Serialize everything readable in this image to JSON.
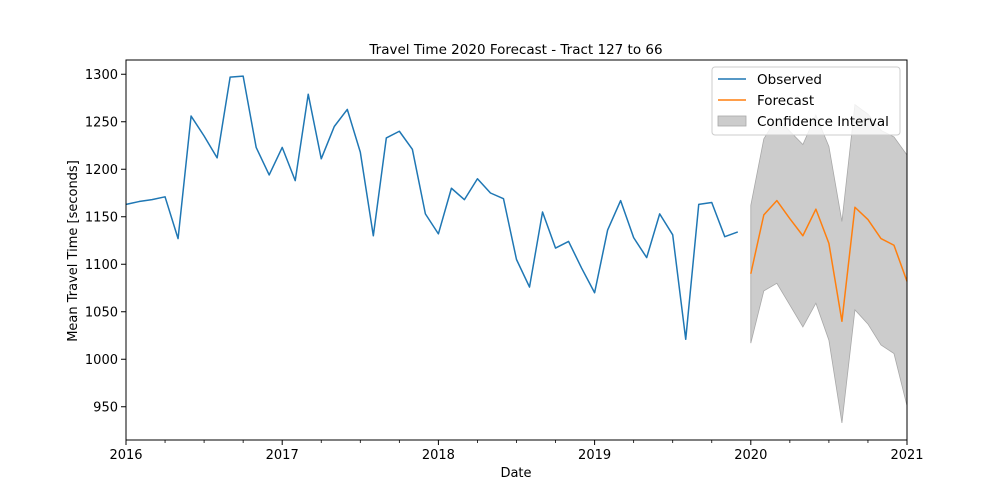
{
  "chart_data": {
    "type": "line",
    "title": "Travel Time 2020 Forecast - Tract 127 to 66",
    "xlabel": "Date",
    "ylabel": "Mean Travel Time [seconds]",
    "xlim": [
      "2016-01",
      "2021-01"
    ],
    "ylim": [
      915,
      1315
    ],
    "x_ticks": [
      "2016",
      "2017",
      "2018",
      "2019",
      "2020",
      "2021"
    ],
    "y_ticks": [
      950,
      1000,
      1050,
      1100,
      1150,
      1200,
      1250,
      1300
    ],
    "grid": false,
    "legend_position": "top-right",
    "legend": {
      "observed": "Observed",
      "forecast": "Forecast",
      "ci": "Confidence Interval"
    },
    "colors": {
      "observed": "#1f77b4",
      "forecast": "#ff7f0e",
      "ci_fill": "#cccccc",
      "ci_edge": "#a8a8a8"
    },
    "series": [
      {
        "name": "Observed",
        "x": [
          "2016-01",
          "2016-02",
          "2016-03",
          "2016-04",
          "2016-05",
          "2016-06",
          "2016-07",
          "2016-08",
          "2016-09",
          "2016-10",
          "2016-11",
          "2016-12",
          "2017-01",
          "2017-02",
          "2017-03",
          "2017-04",
          "2017-05",
          "2017-06",
          "2017-07",
          "2017-08",
          "2017-09",
          "2017-10",
          "2017-11",
          "2017-12",
          "2018-01",
          "2018-02",
          "2018-03",
          "2018-04",
          "2018-05",
          "2018-06",
          "2018-07",
          "2018-08",
          "2018-09",
          "2018-10",
          "2018-11",
          "2018-12",
          "2019-01",
          "2019-02",
          "2019-03",
          "2019-04",
          "2019-05",
          "2019-06",
          "2019-07",
          "2019-08",
          "2019-09",
          "2019-10",
          "2019-11",
          "2019-12"
        ],
        "values": [
          1163,
          1166,
          1168,
          1171,
          1127,
          1256,
          1235,
          1212,
          1297,
          1298,
          1223,
          1194,
          1223,
          1188,
          1279,
          1211,
          1245,
          1263,
          1218,
          1130,
          1233,
          1240,
          1221,
          1153,
          1132,
          1180,
          1168,
          1190,
          1175,
          1169,
          1105,
          1076,
          1155,
          1117,
          1124,
          1096,
          1070,
          1136,
          1167,
          1128,
          1107,
          1153,
          1131,
          1021,
          1163,
          1165,
          1129,
          1134
        ]
      },
      {
        "name": "Forecast",
        "x": [
          "2020-01",
          "2020-02",
          "2020-03",
          "2020-04",
          "2020-05",
          "2020-06",
          "2020-07",
          "2020-08",
          "2020-09",
          "2020-10",
          "2020-11",
          "2020-12",
          "2021-01"
        ],
        "values": [
          1090,
          1152,
          1167,
          1148,
          1130,
          1158,
          1122,
          1040,
          1160,
          1147,
          1127,
          1120,
          1082
        ],
        "ci_lower": [
          1017,
          1072,
          1080,
          1057,
          1034,
          1059,
          1020,
          933,
          1052,
          1037,
          1015,
          1006,
          951
        ],
        "ci_upper": [
          1162,
          1232,
          1254,
          1240,
          1226,
          1257,
          1224,
          1145,
          1268,
          1258,
          1241,
          1234,
          1215
        ]
      }
    ]
  }
}
